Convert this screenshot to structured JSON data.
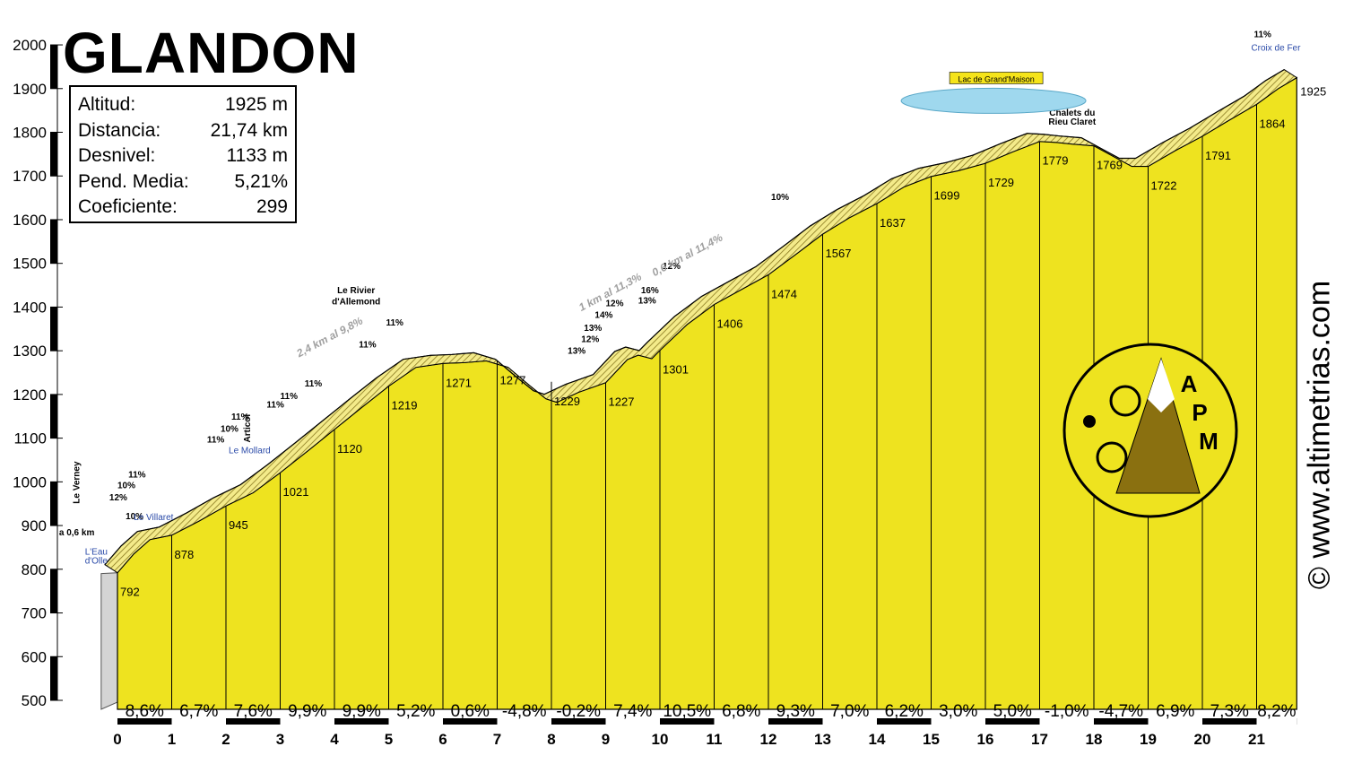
{
  "title": "GLANDON",
  "stats": [
    {
      "label": "Altitud:",
      "value": "1925 m"
    },
    {
      "label": "Distancia:",
      "value": "21,74 km"
    },
    {
      "label": "Desnivel:",
      "value": "1133 m"
    },
    {
      "label": "Pend. Media:",
      "value": "5,21%"
    },
    {
      "label": "Coeficiente:",
      "value": "299"
    }
  ],
  "site": "© www.altimetrias.com",
  "logo_text": [
    "A",
    "P",
    "M"
  ],
  "chart_data": {
    "type": "area",
    "xlabel": "",
    "ylabel": "",
    "xlim": [
      0,
      21.74
    ],
    "ylim": [
      500,
      2000
    ],
    "x_ticks": [
      0,
      1,
      2,
      3,
      4,
      5,
      6,
      7,
      8,
      9,
      10,
      11,
      12,
      13,
      14,
      15,
      16,
      17,
      18,
      19,
      20,
      21
    ],
    "y_ticks": [
      500,
      600,
      700,
      800,
      900,
      1000,
      1100,
      1200,
      1300,
      1400,
      1500,
      1600,
      1700,
      1800,
      1900,
      2000
    ],
    "fill_color": "#eee31f",
    "km_altitudes": [
      {
        "km": 0,
        "alt": 792,
        "label": "792"
      },
      {
        "km": 1,
        "alt": 878,
        "label": "878"
      },
      {
        "km": 2,
        "alt": 945,
        "label": "945"
      },
      {
        "km": 3,
        "alt": 1021,
        "label": "1021"
      },
      {
        "km": 4,
        "alt": 1120,
        "label": "1120"
      },
      {
        "km": 5,
        "alt": 1219,
        "label": "1219"
      },
      {
        "km": 6,
        "alt": 1271,
        "label": "1271"
      },
      {
        "km": 7,
        "alt": 1277,
        "label": "1277"
      },
      {
        "km": 8,
        "alt": 1229,
        "label": "1229"
      },
      {
        "km": 9,
        "alt": 1227,
        "label": "1227"
      },
      {
        "km": 10,
        "alt": 1301,
        "label": "1301"
      },
      {
        "km": 11,
        "alt": 1406,
        "label": "1406"
      },
      {
        "km": 12,
        "alt": 1474,
        "label": "1474"
      },
      {
        "km": 13,
        "alt": 1567,
        "label": "1567"
      },
      {
        "km": 14,
        "alt": 1637,
        "label": "1637"
      },
      {
        "km": 15,
        "alt": 1699,
        "label": "1699"
      },
      {
        "km": 16,
        "alt": 1729,
        "label": "1729"
      },
      {
        "km": 17,
        "alt": 1779,
        "label": "1779"
      },
      {
        "km": 18,
        "alt": 1769,
        "label": "1769"
      },
      {
        "km": 19,
        "alt": 1722,
        "label": "1722"
      },
      {
        "km": 20,
        "alt": 1791,
        "label": "1791"
      },
      {
        "km": 21,
        "alt": 1864,
        "label": "1864"
      },
      {
        "km": 21.74,
        "alt": 1925,
        "label": "1925"
      }
    ],
    "segment_gradients": [
      "8,6%",
      "6,7%",
      "7,6%",
      "9,9%",
      "9,9%",
      "5,2%",
      "0,6%",
      "-4,8%",
      "-0,2%",
      "7,4%",
      "10,5%",
      "6,8%",
      "9,3%",
      "7,0%",
      "6,2%",
      "3,0%",
      "5,0%",
      "-1,0%",
      "-4,7%",
      "6,9%",
      "7,3%",
      "8,2%"
    ],
    "profile_detail": [
      [
        0,
        792
      ],
      [
        0.3,
        835
      ],
      [
        0.6,
        868
      ],
      [
        1,
        878
      ],
      [
        1.5,
        910
      ],
      [
        2,
        945
      ],
      [
        2.5,
        975
      ],
      [
        3,
        1021
      ],
      [
        3.5,
        1070
      ],
      [
        4,
        1120
      ],
      [
        4.5,
        1170
      ],
      [
        5,
        1219
      ],
      [
        5.5,
        1262
      ],
      [
        6,
        1271
      ],
      [
        6.4,
        1273
      ],
      [
        6.8,
        1277
      ],
      [
        7.2,
        1262
      ],
      [
        7.6,
        1220
      ],
      [
        7.9,
        1190
      ],
      [
        8.1,
        1182
      ],
      [
        8.5,
        1205
      ],
      [
        9,
        1227
      ],
      [
        9.4,
        1280
      ],
      [
        9.6,
        1290
      ],
      [
        9.85,
        1282
      ],
      [
        10,
        1301
      ],
      [
        10.5,
        1360
      ],
      [
        11,
        1406
      ],
      [
        11.5,
        1440
      ],
      [
        12,
        1474
      ],
      [
        12.5,
        1520
      ],
      [
        13,
        1567
      ],
      [
        13.5,
        1605
      ],
      [
        14,
        1637
      ],
      [
        14.5,
        1675
      ],
      [
        15,
        1699
      ],
      [
        15.5,
        1712
      ],
      [
        16,
        1729
      ],
      [
        16.5,
        1755
      ],
      [
        17,
        1779
      ],
      [
        17.3,
        1777
      ],
      [
        17.6,
        1773
      ],
      [
        18,
        1769
      ],
      [
        18.4,
        1742
      ],
      [
        18.7,
        1722
      ],
      [
        19,
        1722
      ],
      [
        19.5,
        1758
      ],
      [
        20,
        1791
      ],
      [
        20.5,
        1828
      ],
      [
        21,
        1864
      ],
      [
        21.4,
        1900
      ],
      [
        21.74,
        1925
      ]
    ]
  },
  "annotations": [
    {
      "km": 0.15,
      "alt": 915,
      "text": "10%"
    },
    {
      "km": -0.15,
      "alt": 958,
      "text": "12%"
    },
    {
      "km": 0,
      "alt": 985,
      "text": "10%"
    },
    {
      "km": 0.2,
      "alt": 1010,
      "text": "11%"
    },
    {
      "km": 1.65,
      "alt": 1090,
      "text": "11%"
    },
    {
      "km": 1.9,
      "alt": 1115,
      "text": "10%"
    },
    {
      "km": 2.1,
      "alt": 1142,
      "text": "11%"
    },
    {
      "km": 2.75,
      "alt": 1170,
      "text": "11%"
    },
    {
      "km": 3,
      "alt": 1190,
      "text": "11%"
    },
    {
      "km": 3.45,
      "alt": 1218,
      "text": "11%"
    },
    {
      "km": 4.45,
      "alt": 1308,
      "text": "11%"
    },
    {
      "km": 4.95,
      "alt": 1358,
      "text": "11%"
    },
    {
      "km": 8.3,
      "alt": 1293,
      "text": "13%"
    },
    {
      "km": 8.55,
      "alt": 1320,
      "text": "12%"
    },
    {
      "km": 8.6,
      "alt": 1345,
      "text": "13%"
    },
    {
      "km": 8.8,
      "alt": 1375,
      "text": "14%"
    },
    {
      "km": 9.0,
      "alt": 1402,
      "text": "12%"
    },
    {
      "km": 9.6,
      "alt": 1408,
      "text": "13%"
    },
    {
      "km": 9.65,
      "alt": 1432,
      "text": "16%"
    },
    {
      "km": 10.05,
      "alt": 1487,
      "text": "12%"
    },
    {
      "km": 12.05,
      "alt": 1645,
      "text": "10%"
    },
    {
      "km": 20.95,
      "alt": 2018,
      "text": "11%"
    }
  ],
  "long_climbs": [
    {
      "km": 3.35,
      "alt": 1285,
      "text": "2,4 km al 9,8%"
    },
    {
      "km": 8.55,
      "alt": 1390,
      "text": "1 km al 11,3%"
    },
    {
      "km": 9.9,
      "alt": 1470,
      "text": "0,6 km al 11,4%"
    }
  ],
  "places": [
    {
      "km": -0.7,
      "alt": 950,
      "text": "Le Verney",
      "vertical": true
    },
    {
      "km": -0.75,
      "alt": 878,
      "text": "a 0,6 km"
    },
    {
      "km": 0.3,
      "alt": 912,
      "text": "Le Villaret",
      "link": true
    },
    {
      "km": -0.6,
      "alt": 833,
      "text": "L'Eau",
      "link": true
    },
    {
      "km": -0.6,
      "alt": 813,
      "text": "d'Olle",
      "link": true
    },
    {
      "km": 2.05,
      "alt": 1065,
      "text": "Le Mollard",
      "link": true
    },
    {
      "km": 2.45,
      "alt": 1090,
      "text": "Articol",
      "vertical": true
    },
    {
      "km": 4.4,
      "alt": 1432,
      "text": "Le Rivier"
    },
    {
      "km": 4.4,
      "alt": 1406,
      "text": "d'Allemond"
    },
    {
      "km": 16.2,
      "alt": 1915,
      "text": "Lac de Grand'Maison",
      "boxed": true
    },
    {
      "km": 17.6,
      "alt": 1838,
      "text": "Chalets du"
    },
    {
      "km": 17.6,
      "alt": 1817,
      "text": "Rieu Claret"
    },
    {
      "km": 20.9,
      "alt": 1987,
      "text": "Croix de Fer",
      "link": true
    }
  ]
}
